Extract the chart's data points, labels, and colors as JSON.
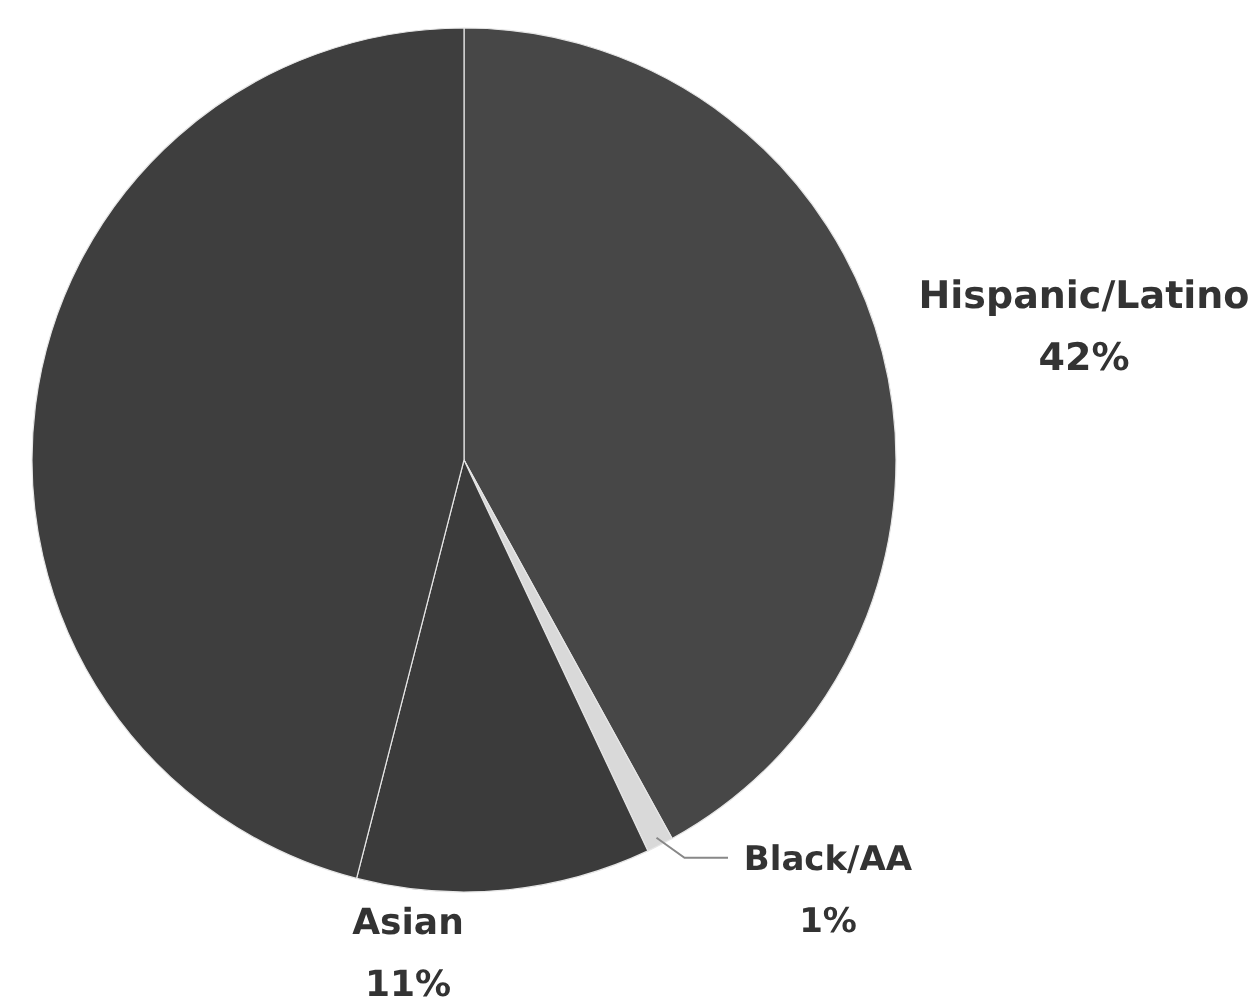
{
  "chart_data": {
    "type": "pie",
    "categories": [
      "Hispanic/Latino",
      "Black/AA",
      "Asian",
      null
    ],
    "values": [
      42,
      1,
      11,
      46
    ],
    "colors": [
      "#474747",
      "#d9d9d9",
      "#3b3b3b",
      "#3e3e3e"
    ],
    "value_labels": [
      "42%",
      "1%",
      "11%",
      null
    ]
  }
}
